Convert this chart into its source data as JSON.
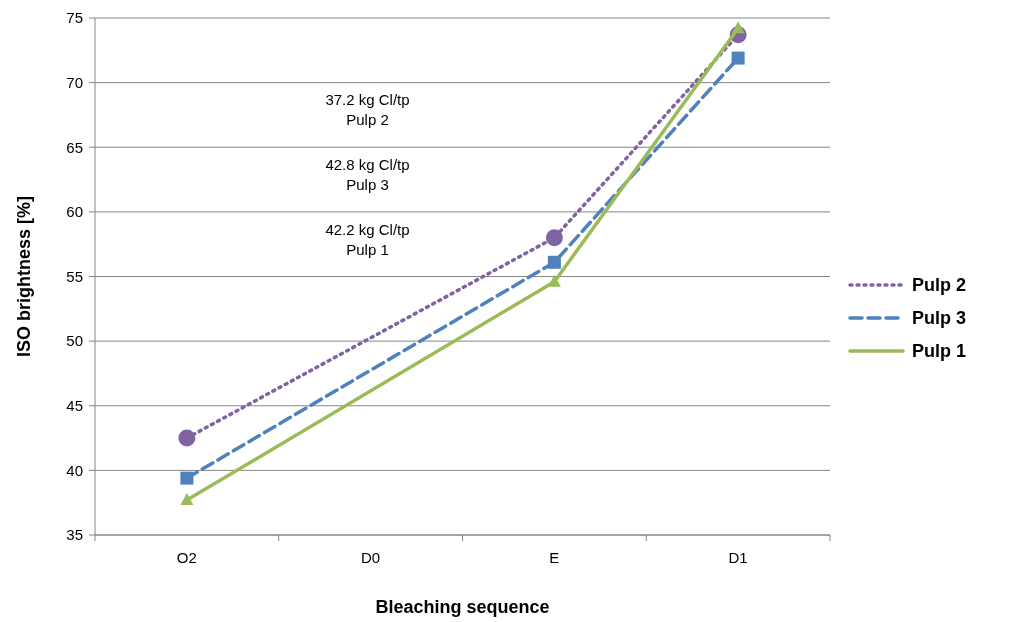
{
  "chart_data": {
    "type": "line",
    "xlabel": "Bleaching sequence",
    "ylabel": "ISO brightness [%]",
    "categories": [
      "O2",
      "D0",
      "E",
      "D1"
    ],
    "series": [
      {
        "name": "Pulp 2",
        "color": "#8064a2",
        "values": [
          42.5,
          null,
          58.0,
          73.7
        ],
        "marker": "circle",
        "line_style": "dotted"
      },
      {
        "name": "Pulp 3",
        "color": "#4f81bd",
        "values": [
          39.4,
          null,
          56.1,
          71.9
        ],
        "marker": "square",
        "line_style": "dashed"
      },
      {
        "name": "Pulp 1",
        "color": "#9bbb59",
        "values": [
          37.7,
          null,
          54.6,
          74.2
        ],
        "marker": "triangle",
        "line_style": "solid"
      }
    ],
    "ylim": [
      35,
      75
    ],
    "yticks": [
      35,
      40,
      45,
      50,
      55,
      60,
      65,
      70,
      75
    ],
    "grid": "y",
    "legend": "right",
    "annotations": [
      "37.2 kg Cl/tp\nPulp 2",
      "42.8 kg Cl/tp\nPulp 3",
      "42.2 kg Cl/tp\nPulp 1"
    ]
  }
}
